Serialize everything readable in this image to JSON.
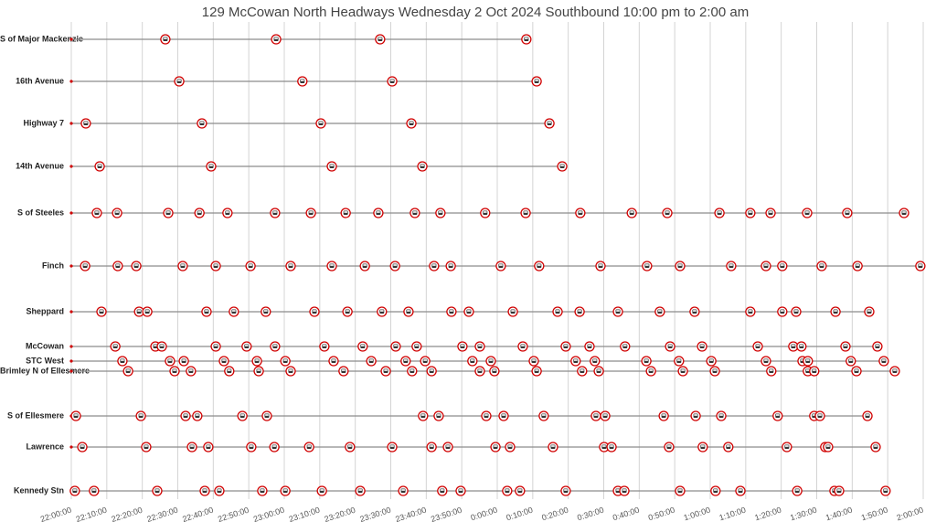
{
  "chart_data": {
    "type": "timeline",
    "title": "129 McCowan North Headways Wednesday 2 Oct 2024 Southbound 10:00 pm to 2:00 am",
    "xlim": [
      0,
      240
    ],
    "xticks": [
      {
        "value": 0,
        "label": "22:00:00"
      },
      {
        "value": 10,
        "label": "22:10:00"
      },
      {
        "value": 20,
        "label": "22:20:00"
      },
      {
        "value": 30,
        "label": "22:30:00"
      },
      {
        "value": 40,
        "label": "22:40:00"
      },
      {
        "value": 50,
        "label": "22:50:00"
      },
      {
        "value": 60,
        "label": "23:00:00"
      },
      {
        "value": 70,
        "label": "23:10:00"
      },
      {
        "value": 80,
        "label": "23:20:00"
      },
      {
        "value": 90,
        "label": "23:30:00"
      },
      {
        "value": 100,
        "label": "23:40:00"
      },
      {
        "value": 110,
        "label": "23:50:00"
      },
      {
        "value": 120,
        "label": "0:00:00"
      },
      {
        "value": 130,
        "label": "0:10:00"
      },
      {
        "value": 140,
        "label": "0:20:00"
      },
      {
        "value": 150,
        "label": "0:30:00"
      },
      {
        "value": 160,
        "label": "0:40:00"
      },
      {
        "value": 170,
        "label": "0:50:00"
      },
      {
        "value": 180,
        "label": "1:00:00"
      },
      {
        "value": 190,
        "label": "1:10:00"
      },
      {
        "value": 200,
        "label": "1:20:00"
      },
      {
        "value": 210,
        "label": "1:30:00"
      },
      {
        "value": 220,
        "label": "1:40:00"
      },
      {
        "value": 230,
        "label": "1:50:00"
      },
      {
        "value": 240,
        "label": "2:00:00"
      }
    ],
    "grid": true,
    "color": "#d00000",
    "series": [
      {
        "name": "S of Major Mackenzie",
        "values": [
          26.5,
          57.7,
          87.0,
          128.2
        ]
      },
      {
        "name": "16th Avenue",
        "values": [
          30.4,
          65.1,
          90.4,
          131.1
        ]
      },
      {
        "name": "Highway 7",
        "values": [
          4.1,
          36.8,
          70.3,
          95.8,
          134.7
        ]
      },
      {
        "name": "14th Avenue",
        "values": [
          8.0,
          39.4,
          73.4,
          98.9,
          138.3
        ]
      },
      {
        "name": "S of Steeles",
        "values": [
          7.2,
          12.9,
          27.3,
          36.1,
          44.0,
          57.4,
          67.5,
          77.3,
          86.5,
          96.8,
          104.0,
          116.6,
          128.0,
          143.4,
          157.9,
          167.9,
          182.6,
          191.3,
          197.0,
          207.3,
          218.6,
          234.6
        ]
      },
      {
        "name": "Finch",
        "values": [
          3.9,
          13.1,
          18.3,
          31.4,
          40.7,
          50.5,
          61.8,
          73.4,
          82.7,
          91.2,
          102.2,
          106.9,
          121.0,
          131.8,
          149.1,
          162.2,
          171.5,
          185.9,
          195.7,
          200.3,
          211.4,
          221.5,
          239.2
        ]
      },
      {
        "name": "Sheppard",
        "values": [
          8.5,
          19.1,
          21.4,
          38.1,
          45.8,
          54.8,
          68.5,
          77.8,
          87.5,
          95.0,
          107.1,
          112.0,
          124.4,
          137.0,
          143.2,
          154.0,
          165.8,
          175.6,
          191.3,
          200.3,
          204.2,
          215.3,
          224.8
        ]
      },
      {
        "name": "McCowan",
        "values": [
          12.4,
          23.7,
          25.5,
          40.7,
          49.4,
          57.4,
          71.3,
          82.1,
          91.4,
          97.3,
          110.2,
          115.1,
          127.2,
          139.3,
          146.0,
          156.0,
          168.7,
          177.7,
          193.4,
          203.4,
          205.7,
          218.1,
          227.1
        ]
      },
      {
        "name": "STC West",
        "values": [
          14.4,
          27.8,
          31.7,
          43.0,
          52.3,
          60.3,
          73.9,
          84.5,
          94.2,
          99.7,
          113.0,
          118.2,
          130.3,
          142.1,
          147.5,
          162.0,
          171.2,
          180.3,
          195.7,
          206.0,
          207.5,
          219.6,
          228.9
        ]
      },
      {
        "name": "Brimley N of Ellesmere",
        "values": [
          16.0,
          29.1,
          33.7,
          44.5,
          52.8,
          61.8,
          76.7,
          88.6,
          96.0,
          101.5,
          115.1,
          119.2,
          131.1,
          143.9,
          148.6,
          163.3,
          172.3,
          181.3,
          197.2,
          207.5,
          209.3,
          221.2,
          232.0
        ]
      },
      {
        "name": "S of Ellesmere",
        "values": [
          1.3,
          19.6,
          32.2,
          35.5,
          48.2,
          55.1,
          99.1,
          103.5,
          116.9,
          121.8,
          133.1,
          147.8,
          150.4,
          166.9,
          175.9,
          183.1,
          199.0,
          209.3,
          210.9,
          224.3
        ]
      },
      {
        "name": "Lawrence",
        "values": [
          3.1,
          21.1,
          34.0,
          38.6,
          50.7,
          57.2,
          67.0,
          78.5,
          90.4,
          101.5,
          106.1,
          119.5,
          123.6,
          135.7,
          150.1,
          152.2,
          168.4,
          177.9,
          185.1,
          201.6,
          212.4,
          213.2,
          226.6
        ]
      },
      {
        "name": "Kennedy Stn",
        "values": [
          1.0,
          6.4,
          24.2,
          37.6,
          41.7,
          53.8,
          60.3,
          70.6,
          81.4,
          93.5,
          104.5,
          109.7,
          122.8,
          126.4,
          139.3,
          154.0,
          155.8,
          171.5,
          181.5,
          188.5,
          204.5,
          215.0,
          216.3,
          229.4
        ]
      }
    ]
  }
}
